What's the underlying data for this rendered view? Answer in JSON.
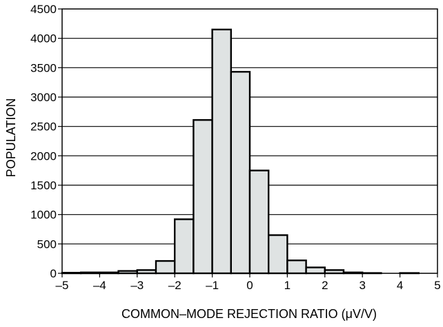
{
  "chart_data": {
    "type": "bar",
    "xlabel": "COMMON–MODE REJECTION RATIO (μV/V)",
    "ylabel": "POPULATION",
    "xlim": [
      -5,
      5
    ],
    "ylim": [
      0,
      4500
    ],
    "x_ticks": [
      -5,
      -4,
      -3,
      -2,
      -1,
      0,
      1,
      2,
      3,
      4,
      5
    ],
    "x_tick_labels": [
      "–5",
      "–4",
      "–3",
      "–2",
      "–1",
      "0",
      "1",
      "2",
      "3",
      "4",
      "5"
    ],
    "y_ticks": [
      0,
      500,
      1000,
      1500,
      2000,
      2500,
      3000,
      3500,
      4000,
      4500
    ],
    "y_tick_labels": [
      "0",
      "500",
      "1000",
      "1500",
      "2000",
      "2500",
      "3000",
      "3500",
      "4000",
      "4500"
    ],
    "grid": "horizontal",
    "bin_width": 0.5,
    "bins": [
      {
        "x_start": -5.0,
        "x_end": -4.5,
        "value": 10
      },
      {
        "x_start": -4.5,
        "x_end": -4.0,
        "value": 15
      },
      {
        "x_start": -4.0,
        "x_end": -3.5,
        "value": 15
      },
      {
        "x_start": -3.5,
        "x_end": -3.0,
        "value": 40
      },
      {
        "x_start": -3.0,
        "x_end": -2.5,
        "value": 55
      },
      {
        "x_start": -2.5,
        "x_end": -2.0,
        "value": 210
      },
      {
        "x_start": -2.0,
        "x_end": -1.5,
        "value": 920
      },
      {
        "x_start": -1.5,
        "x_end": -1.0,
        "value": 2610
      },
      {
        "x_start": -1.0,
        "x_end": -0.5,
        "value": 4150
      },
      {
        "x_start": -0.5,
        "x_end": 0.0,
        "value": 3430
      },
      {
        "x_start": 0.0,
        "x_end": 0.5,
        "value": 1750
      },
      {
        "x_start": 0.5,
        "x_end": 1.0,
        "value": 650
      },
      {
        "x_start": 1.0,
        "x_end": 1.5,
        "value": 220
      },
      {
        "x_start": 1.5,
        "x_end": 2.0,
        "value": 100
      },
      {
        "x_start": 2.0,
        "x_end": 2.5,
        "value": 55
      },
      {
        "x_start": 2.5,
        "x_end": 3.0,
        "value": 15
      },
      {
        "x_start": 3.0,
        "x_end": 3.5,
        "value": 5
      },
      {
        "x_start": 3.5,
        "x_end": 4.0,
        "value": 0
      },
      {
        "x_start": 4.0,
        "x_end": 4.5,
        "value": 5
      },
      {
        "x_start": 4.5,
        "x_end": 5.0,
        "value": 0
      }
    ],
    "bar_color": "#dfe3e3",
    "bar_edge_color": "#000000"
  }
}
